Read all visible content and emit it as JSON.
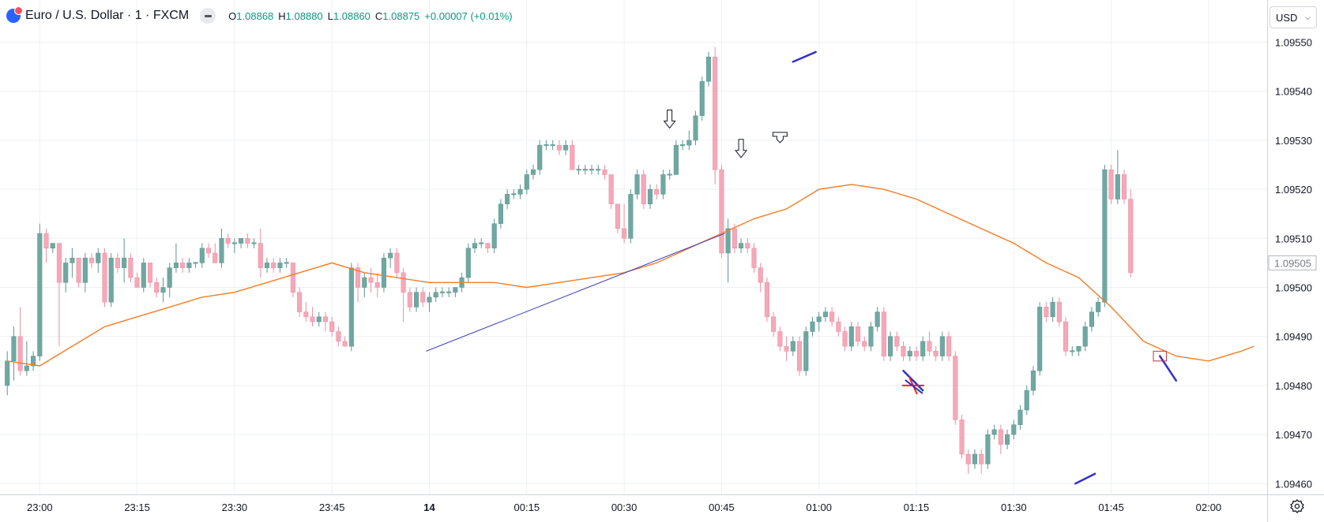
{
  "header": {
    "symbol_title": "Euro / U.S. Dollar · 1 · FXCM",
    "ohlc": {
      "o_label": "O",
      "o": "1.08868",
      "h_label": "H",
      "h": "1.08880",
      "l_label": "L",
      "l": "1.08860",
      "c_label": "C",
      "c": "1.08875",
      "change": "+0.00007 (+0.01%)"
    }
  },
  "currency_selector": {
    "value": "USD"
  },
  "icons": {
    "collapse": "minus-icon",
    "settings": "gear-icon",
    "logo": "symbol-logo-icon",
    "dropdown": "chevron-down-icon"
  },
  "colors": {
    "up": "#6fa8a2",
    "down": "#f5a8b8",
    "ma": "#f57c25",
    "trendline": "#3f3fbf",
    "annotation": "#3030c8",
    "cross": "#ff1f1f",
    "ohlc_value": "#089981"
  },
  "chart_data": {
    "type": "candlestick",
    "x_unit": "bar index (1-minute bars)",
    "ylim": [
      1.09457,
      1.09556
    ],
    "y_ticks": [
      "1.09460",
      "1.09470",
      "1.09480",
      "1.09490",
      "1.09500",
      "1.09510",
      "1.09520",
      "1.09530",
      "1.09540",
      "1.09550"
    ],
    "x_ticks": [
      {
        "bar": 5,
        "label": "23:00"
      },
      {
        "bar": 20,
        "label": "23:15"
      },
      {
        "bar": 35,
        "label": "23:30"
      },
      {
        "bar": 50,
        "label": "23:45"
      },
      {
        "bar": 65,
        "label": "14"
      },
      {
        "bar": 80,
        "label": "00:15"
      },
      {
        "bar": 95,
        "label": "00:30"
      },
      {
        "bar": 110,
        "label": "00:45"
      },
      {
        "bar": 125,
        "label": "01:00"
      },
      {
        "bar": 140,
        "label": "01:15"
      },
      {
        "bar": 155,
        "label": "01:30"
      },
      {
        "bar": 170,
        "label": "01:45"
      },
      {
        "bar": 185,
        "label": "02:00"
      }
    ],
    "price_label": "1.09505",
    "price_label_value": 1.09505,
    "candles": [
      [
        1.0948,
        1.09487,
        1.09478,
        1.09485
      ],
      [
        1.09485,
        1.09492,
        1.09481,
        1.0949
      ],
      [
        1.0949,
        1.09496,
        1.09482,
        1.09483
      ],
      [
        1.09483,
        1.09489,
        1.09482,
        1.09484
      ],
      [
        1.09484,
        1.09487,
        1.09483,
        1.09486
      ],
      [
        1.09486,
        1.09513,
        1.09485,
        1.09511
      ],
      [
        1.09511,
        1.09512,
        1.09505,
        1.09508
      ],
      [
        1.09508,
        1.09509,
        1.09507,
        1.09509
      ],
      [
        1.09509,
        1.09509,
        1.09488,
        1.09501
      ],
      [
        1.09501,
        1.09506,
        1.09499,
        1.09505
      ],
      [
        1.09505,
        1.09508,
        1.09502,
        1.09506
      ],
      [
        1.09506,
        1.09506,
        1.095,
        1.09501
      ],
      [
        1.09501,
        1.09507,
        1.09499,
        1.09506
      ],
      [
        1.09506,
        1.09507,
        1.09504,
        1.09505
      ],
      [
        1.09505,
        1.09508,
        1.09503,
        1.09507
      ],
      [
        1.09507,
        1.09508,
        1.09496,
        1.09497
      ],
      [
        1.09497,
        1.09507,
        1.09496,
        1.09506
      ],
      [
        1.09506,
        1.09507,
        1.09503,
        1.09504
      ],
      [
        1.09504,
        1.0951,
        1.09501,
        1.09506
      ],
      [
        1.09506,
        1.09507,
        1.09501,
        1.09502
      ],
      [
        1.09502,
        1.09503,
        1.095,
        1.095
      ],
      [
        1.095,
        1.09506,
        1.09499,
        1.09505
      ],
      [
        1.09505,
        1.09505,
        1.095,
        1.09501
      ],
      [
        1.09501,
        1.09502,
        1.09498,
        1.09499
      ],
      [
        1.09499,
        1.09502,
        1.09497,
        1.095
      ],
      [
        1.095,
        1.09505,
        1.09498,
        1.09504
      ],
      [
        1.09504,
        1.09509,
        1.09503,
        1.09505
      ],
      [
        1.09505,
        1.09506,
        1.09503,
        1.09504
      ],
      [
        1.09504,
        1.09506,
        1.09503,
        1.09505
      ],
      [
        1.09505,
        1.09505,
        1.09504,
        1.09505
      ],
      [
        1.09505,
        1.09509,
        1.09504,
        1.09508
      ],
      [
        1.09508,
        1.09509,
        1.09506,
        1.09507
      ],
      [
        1.09507,
        1.09509,
        1.09505,
        1.09505
      ],
      [
        1.09505,
        1.09512,
        1.09504,
        1.0951
      ],
      [
        1.0951,
        1.09511,
        1.09508,
        1.09509
      ],
      [
        1.09509,
        1.0951,
        1.09507,
        1.09509
      ],
      [
        1.09509,
        1.0951,
        1.09508,
        1.0951
      ],
      [
        1.0951,
        1.09511,
        1.09508,
        1.09509
      ],
      [
        1.09509,
        1.0951,
        1.09508,
        1.09509
      ],
      [
        1.09509,
        1.09512,
        1.09502,
        1.09504
      ],
      [
        1.09504,
        1.09506,
        1.09503,
        1.09505
      ],
      [
        1.09505,
        1.09506,
        1.09503,
        1.09504
      ],
      [
        1.09504,
        1.09506,
        1.09503,
        1.09505
      ],
      [
        1.09505,
        1.09506,
        1.09504,
        1.09505
      ],
      [
        1.09505,
        1.09505,
        1.09498,
        1.09499
      ],
      [
        1.09499,
        1.095,
        1.09494,
        1.09495
      ],
      [
        1.09495,
        1.09497,
        1.09493,
        1.09494
      ],
      [
        1.09494,
        1.09496,
        1.09492,
        1.09493
      ],
      [
        1.09493,
        1.09495,
        1.09492,
        1.09494
      ],
      [
        1.09494,
        1.09495,
        1.09491,
        1.09493
      ],
      [
        1.09493,
        1.09494,
        1.0949,
        1.09491
      ],
      [
        1.09491,
        1.09492,
        1.09488,
        1.09489
      ],
      [
        1.09489,
        1.0949,
        1.09488,
        1.09488
      ],
      [
        1.09488,
        1.09505,
        1.09487,
        1.09504
      ],
      [
        1.09504,
        1.09505,
        1.09497,
        1.095
      ],
      [
        1.095,
        1.09503,
        1.09498,
        1.09502
      ],
      [
        1.09502,
        1.09504,
        1.09499,
        1.09501
      ],
      [
        1.09501,
        1.09503,
        1.09498,
        1.095
      ],
      [
        1.095,
        1.09507,
        1.09499,
        1.09506
      ],
      [
        1.09506,
        1.09508,
        1.09504,
        1.09507
      ],
      [
        1.09507,
        1.09508,
        1.09502,
        1.09503
      ],
      [
        1.09503,
        1.09504,
        1.09493,
        1.09499
      ],
      [
        1.09499,
        1.095,
        1.09495,
        1.09496
      ],
      [
        1.09496,
        1.095,
        1.09495,
        1.09499
      ],
      [
        1.09499,
        1.095,
        1.09496,
        1.09497
      ],
      [
        1.09497,
        1.09499,
        1.09495,
        1.09498
      ],
      [
        1.09498,
        1.095,
        1.09497,
        1.09499
      ],
      [
        1.09499,
        1.095,
        1.09498,
        1.09499
      ],
      [
        1.09499,
        1.095,
        1.09498,
        1.09499
      ],
      [
        1.09499,
        1.095,
        1.09498,
        1.095
      ],
      [
        1.095,
        1.09503,
        1.09499,
        1.09502
      ],
      [
        1.09502,
        1.09509,
        1.09501,
        1.09508
      ],
      [
        1.09508,
        1.0951,
        1.09507,
        1.09509
      ],
      [
        1.09509,
        1.0951,
        1.09508,
        1.09509
      ],
      [
        1.09509,
        1.09509,
        1.09507,
        1.09508
      ],
      [
        1.09508,
        1.09514,
        1.09507,
        1.09513
      ],
      [
        1.09513,
        1.09518,
        1.09512,
        1.09517
      ],
      [
        1.09517,
        1.0952,
        1.09516,
        1.09519
      ],
      [
        1.09519,
        1.0952,
        1.09518,
        1.09519
      ],
      [
        1.09519,
        1.09521,
        1.09518,
        1.0952
      ],
      [
        1.0952,
        1.09524,
        1.09519,
        1.09523
      ],
      [
        1.09523,
        1.09525,
        1.09522,
        1.09524
      ],
      [
        1.09524,
        1.0953,
        1.09523,
        1.09529
      ],
      [
        1.09529,
        1.0953,
        1.09528,
        1.09529
      ],
      [
        1.09529,
        1.0953,
        1.09528,
        1.09529
      ],
      [
        1.09529,
        1.0953,
        1.09527,
        1.09528
      ],
      [
        1.09528,
        1.0953,
        1.09527,
        1.09529
      ],
      [
        1.09529,
        1.0953,
        1.09524,
        1.09524
      ],
      [
        1.09524,
        1.09525,
        1.09523,
        1.09524
      ],
      [
        1.09524,
        1.09525,
        1.09523,
        1.09524
      ],
      [
        1.09524,
        1.09525,
        1.09523,
        1.09524
      ],
      [
        1.09524,
        1.09525,
        1.09523,
        1.09524
      ],
      [
        1.09524,
        1.09525,
        1.09522,
        1.09523
      ],
      [
        1.09523,
        1.09523,
        1.09516,
        1.09517
      ],
      [
        1.09517,
        1.09517,
        1.09511,
        1.09512
      ],
      [
        1.09512,
        1.09517,
        1.09509,
        1.0951
      ],
      [
        1.0951,
        1.0952,
        1.09509,
        1.09519
      ],
      [
        1.09519,
        1.09524,
        1.09518,
        1.09523
      ],
      [
        1.09523,
        1.09524,
        1.09516,
        1.09517
      ],
      [
        1.09517,
        1.09521,
        1.09516,
        1.0952
      ],
      [
        1.0952,
        1.09521,
        1.09518,
        1.09519
      ],
      [
        1.09519,
        1.09524,
        1.09518,
        1.09523
      ],
      [
        1.09523,
        1.09524,
        1.09522,
        1.09523
      ],
      [
        1.09523,
        1.0953,
        1.09523,
        1.09529
      ],
      [
        1.09529,
        1.0953,
        1.09528,
        1.09529
      ],
      [
        1.09529,
        1.09532,
        1.09528,
        1.0953
      ],
      [
        1.0953,
        1.09536,
        1.09529,
        1.09535
      ],
      [
        1.09535,
        1.09543,
        1.09534,
        1.09542
      ],
      [
        1.09542,
        1.09548,
        1.09541,
        1.09547
      ],
      [
        1.09547,
        1.09549,
        1.09521,
        1.09524
      ],
      [
        1.09524,
        1.09525,
        1.09506,
        1.09507
      ],
      [
        1.09507,
        1.09514,
        1.09501,
        1.09512
      ],
      [
        1.09512,
        1.09513,
        1.09507,
        1.09508
      ],
      [
        1.09508,
        1.0951,
        1.09507,
        1.09509
      ],
      [
        1.09509,
        1.0951,
        1.09507,
        1.09508
      ],
      [
        1.09508,
        1.09509,
        1.09503,
        1.09504
      ],
      [
        1.09504,
        1.09505,
        1.09499,
        1.09501
      ],
      [
        1.09501,
        1.09502,
        1.09493,
        1.09494
      ],
      [
        1.09494,
        1.09495,
        1.0949,
        1.09491
      ],
      [
        1.09491,
        1.09492,
        1.09487,
        1.09488
      ],
      [
        1.09488,
        1.0949,
        1.09485,
        1.09487
      ],
      [
        1.09487,
        1.0949,
        1.09486,
        1.09489
      ],
      [
        1.09489,
        1.0949,
        1.09482,
        1.09483
      ],
      [
        1.09483,
        1.09492,
        1.09482,
        1.09491
      ],
      [
        1.09491,
        1.09494,
        1.0949,
        1.09493
      ],
      [
        1.09493,
        1.09495,
        1.09491,
        1.09494
      ],
      [
        1.09494,
        1.09496,
        1.09493,
        1.09495
      ],
      [
        1.09495,
        1.09496,
        1.09492,
        1.09493
      ],
      [
        1.09493,
        1.09494,
        1.0949,
        1.09491
      ],
      [
        1.09491,
        1.09492,
        1.09487,
        1.09488
      ],
      [
        1.09488,
        1.09493,
        1.09487,
        1.09492
      ],
      [
        1.09492,
        1.09493,
        1.09488,
        1.09489
      ],
      [
        1.09489,
        1.0949,
        1.09487,
        1.09488
      ],
      [
        1.09488,
        1.09493,
        1.09487,
        1.09492
      ],
      [
        1.09492,
        1.09496,
        1.09491,
        1.09495
      ],
      [
        1.09495,
        1.09496,
        1.09485,
        1.09486
      ],
      [
        1.09486,
        1.09491,
        1.09485,
        1.0949
      ],
      [
        1.0949,
        1.09491,
        1.09487,
        1.09488
      ],
      [
        1.09488,
        1.09489,
        1.09485,
        1.09486
      ],
      [
        1.09486,
        1.09488,
        1.09485,
        1.09487
      ],
      [
        1.09487,
        1.09488,
        1.09485,
        1.09486
      ],
      [
        1.09486,
        1.0949,
        1.09485,
        1.09489
      ],
      [
        1.09489,
        1.09491,
        1.09486,
        1.09487
      ],
      [
        1.09487,
        1.09488,
        1.09485,
        1.09486
      ],
      [
        1.09486,
        1.09491,
        1.09485,
        1.0949
      ],
      [
        1.0949,
        1.09491,
        1.09485,
        1.09486
      ],
      [
        1.09486,
        1.09487,
        1.09472,
        1.09473
      ],
      [
        1.09473,
        1.09474,
        1.09465,
        1.09466
      ],
      [
        1.09466,
        1.09467,
        1.09462,
        1.09464
      ],
      [
        1.09464,
        1.09467,
        1.09463,
        1.09466
      ],
      [
        1.09466,
        1.09467,
        1.09462,
        1.09464
      ],
      [
        1.09464,
        1.09471,
        1.09463,
        1.0947
      ],
      [
        1.0947,
        1.09472,
        1.09469,
        1.09471
      ],
      [
        1.09471,
        1.09472,
        1.09466,
        1.09468
      ],
      [
        1.09468,
        1.09471,
        1.09467,
        1.0947
      ],
      [
        1.0947,
        1.09473,
        1.09469,
        1.09472
      ],
      [
        1.09472,
        1.09476,
        1.09471,
        1.09475
      ],
      [
        1.09475,
        1.0948,
        1.09474,
        1.09479
      ],
      [
        1.09479,
        1.09484,
        1.09478,
        1.09483
      ],
      [
        1.09483,
        1.09497,
        1.09482,
        1.09496
      ],
      [
        1.09496,
        1.09497,
        1.09493,
        1.09494
      ],
      [
        1.09494,
        1.09498,
        1.09493,
        1.09497
      ],
      [
        1.09497,
        1.09498,
        1.09492,
        1.09493
      ],
      [
        1.09493,
        1.09494,
        1.09486,
        1.09487
      ],
      [
        1.09487,
        1.09488,
        1.09486,
        1.09487
      ],
      [
        1.09487,
        1.09488,
        1.09486,
        1.09488
      ],
      [
        1.09488,
        1.09493,
        1.09487,
        1.09492
      ],
      [
        1.09492,
        1.09496,
        1.09491,
        1.09495
      ],
      [
        1.09495,
        1.09498,
        1.09494,
        1.09497
      ],
      [
        1.09497,
        1.09525,
        1.09496,
        1.09524
      ],
      [
        1.09524,
        1.09525,
        1.09517,
        1.09518
      ],
      [
        1.09518,
        1.09528,
        1.09517,
        1.09523
      ],
      [
        1.09523,
        1.09524,
        1.09517,
        1.09518
      ],
      [
        1.09518,
        1.0952,
        1.09502,
        1.09503
      ]
    ],
    "ma_line": [
      [
        0,
        1.09485
      ],
      [
        5,
        1.09484
      ],
      [
        10,
        1.09488
      ],
      [
        15,
        1.09492
      ],
      [
        20,
        1.09494
      ],
      [
        25,
        1.09496
      ],
      [
        30,
        1.09498
      ],
      [
        35,
        1.09499
      ],
      [
        40,
        1.09501
      ],
      [
        45,
        1.09503
      ],
      [
        50,
        1.09505
      ],
      [
        55,
        1.09503
      ],
      [
        60,
        1.09502
      ],
      [
        65,
        1.09501
      ],
      [
        70,
        1.09501
      ],
      [
        75,
        1.09501
      ],
      [
        80,
        1.095
      ],
      [
        85,
        1.09501
      ],
      [
        90,
        1.09502
      ],
      [
        95,
        1.09503
      ],
      [
        100,
        1.09505
      ],
      [
        105,
        1.09508
      ],
      [
        110,
        1.09511
      ],
      [
        115,
        1.09514
      ],
      [
        120,
        1.09516
      ],
      [
        125,
        1.0952
      ],
      [
        130,
        1.09521
      ],
      [
        135,
        1.0952
      ],
      [
        140,
        1.09518
      ],
      [
        145,
        1.09515
      ],
      [
        150,
        1.09512
      ],
      [
        155,
        1.09509
      ],
      [
        160,
        1.09505
      ],
      [
        165,
        1.09502
      ],
      [
        170,
        1.09496
      ],
      [
        175,
        1.09489
      ],
      [
        180,
        1.09486
      ],
      [
        185,
        1.09485
      ],
      [
        190,
        1.09487
      ],
      [
        192,
        1.09488
      ]
    ],
    "trendline": {
      "from": [
        64.5,
        1.09487
      ],
      "to": [
        110.5,
        1.09511
      ]
    },
    "annotations": {
      "down_arrows": [
        [
          102,
          1.09532
        ],
        [
          113,
          1.09526
        ]
      ],
      "right_arrow": [
        119,
        1.0953
      ],
      "segments": [
        {
          "from": [
            121,
            1.09546
          ],
          "to": [
            124.5,
            1.09548
          ]
        },
        {
          "from": [
            138,
            1.09483
          ],
          "to": [
            141,
            1.09479
          ]
        },
        {
          "from": [
            164.5,
            1.0946
          ],
          "to": [
            167.5,
            1.09462
          ]
        },
        {
          "from": [
            177.5,
            1.09486
          ],
          "to": [
            180,
            1.09481
          ]
        }
      ],
      "cross": [
        139.5,
        1.0948
      ],
      "box": {
        "from": [
          176.5,
          1.09487
        ],
        "to": [
          178.5,
          1.09485
        ]
      }
    }
  }
}
